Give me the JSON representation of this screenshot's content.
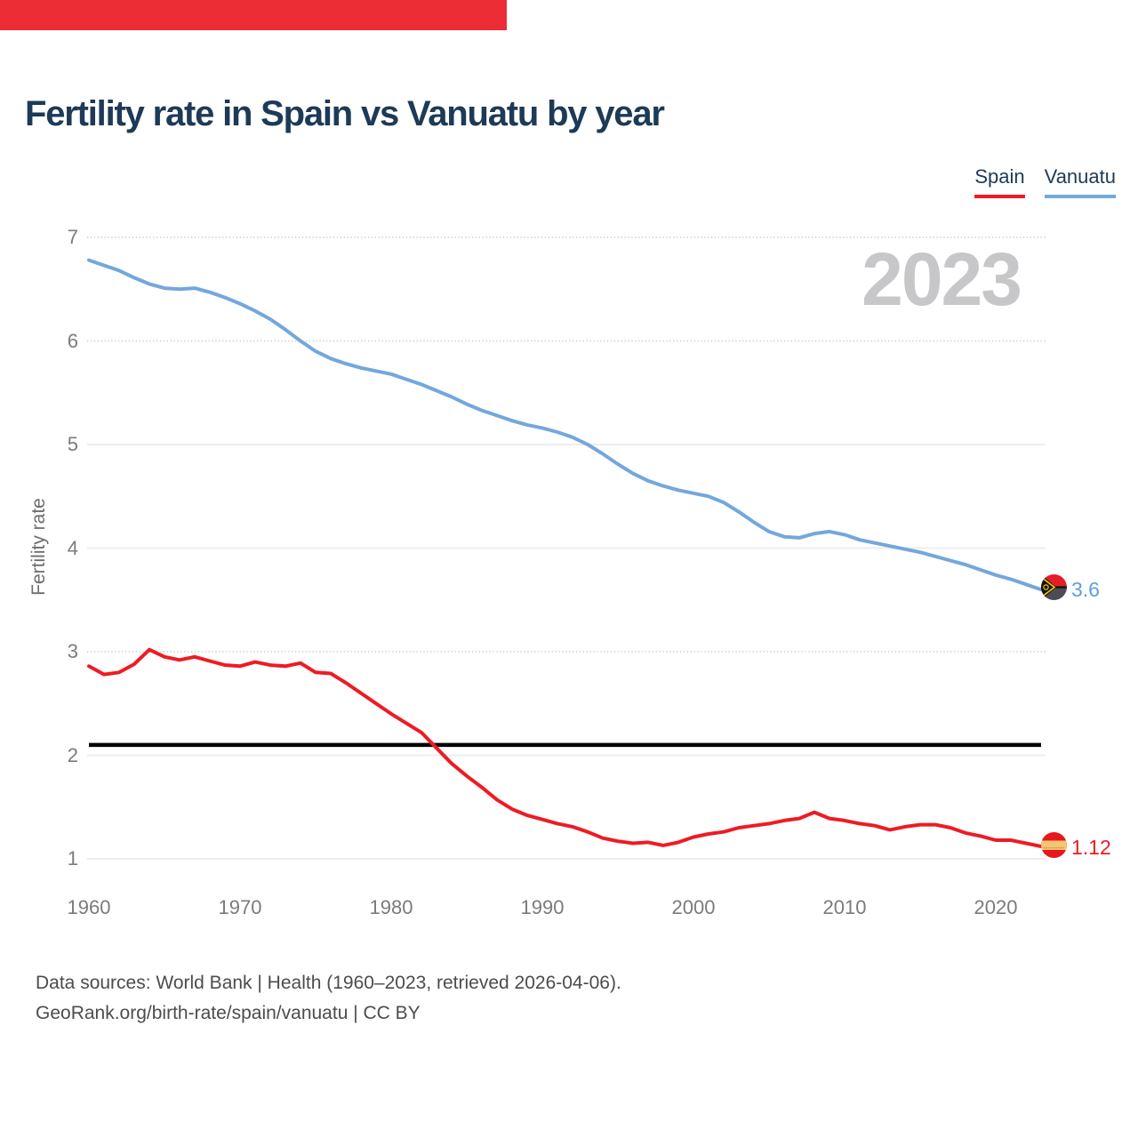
{
  "top_bar": {
    "color": "#ed2d36"
  },
  "header": {
    "title": "Fertility rate in Spain vs Vanuatu by year"
  },
  "legend": {
    "items": [
      {
        "label": "Spain",
        "color": "#ee1b24"
      },
      {
        "label": "Vanuatu",
        "color": "#74a9dd"
      }
    ]
  },
  "watermark": {
    "text": "2023"
  },
  "y_axis": {
    "title": "Fertility rate",
    "ticks": [
      7,
      6,
      5,
      4,
      3,
      2,
      1
    ],
    "dotted_ticks": [
      7,
      6,
      3
    ]
  },
  "x_axis": {
    "ticks": [
      1960,
      1970,
      1980,
      1990,
      2000,
      2010,
      2020
    ]
  },
  "end_labels": {
    "vanuatu": {
      "value": "3.6",
      "color": "#5f9ed8",
      "flag": "vanuatu-flag"
    },
    "spain": {
      "value": "1.12",
      "color": "#ee1b24",
      "flag": "spain-flag"
    }
  },
  "footer": {
    "line1": "Data sources: World Bank | Health (1960–2023, retrieved 2026-04-06).",
    "line2": "GeoRank.org/birth-rate/spain/vanuatu | CC BY"
  },
  "chart_data": {
    "type": "line",
    "title": "Fertility rate in Spain vs Vanuatu by year",
    "ylabel": "Fertility rate",
    "ylim": [
      1,
      7
    ],
    "grid": true,
    "legend_position": "top-right",
    "watermark": "2023",
    "reference_line": {
      "value": 2.1,
      "color": "#000000"
    },
    "yticks": [
      1,
      2,
      3,
      4,
      5,
      6,
      7
    ],
    "xticks": [
      1960,
      1970,
      1980,
      1990,
      2000,
      2010,
      2020
    ],
    "x": [
      1960,
      1961,
      1962,
      1963,
      1964,
      1965,
      1966,
      1967,
      1968,
      1969,
      1970,
      1971,
      1972,
      1973,
      1974,
      1975,
      1976,
      1977,
      1978,
      1979,
      1980,
      1981,
      1982,
      1983,
      1984,
      1985,
      1986,
      1987,
      1988,
      1989,
      1990,
      1991,
      1992,
      1993,
      1994,
      1995,
      1996,
      1997,
      1998,
      1999,
      2000,
      2001,
      2002,
      2003,
      2004,
      2005,
      2006,
      2007,
      2008,
      2009,
      2010,
      2011,
      2012,
      2013,
      2014,
      2015,
      2016,
      2017,
      2018,
      2019,
      2020,
      2021,
      2022,
      2023
    ],
    "series": [
      {
        "name": "Spain",
        "color": "#ee1b24",
        "end_value": "1.12",
        "values": [
          2.86,
          2.78,
          2.8,
          2.88,
          3.02,
          2.95,
          2.92,
          2.95,
          2.91,
          2.87,
          2.86,
          2.9,
          2.87,
          2.86,
          2.89,
          2.8,
          2.79,
          2.7,
          2.6,
          2.5,
          2.4,
          2.31,
          2.22,
          2.07,
          1.92,
          1.8,
          1.69,
          1.57,
          1.48,
          1.42,
          1.38,
          1.34,
          1.31,
          1.26,
          1.2,
          1.17,
          1.15,
          1.16,
          1.13,
          1.16,
          1.21,
          1.24,
          1.26,
          1.3,
          1.32,
          1.34,
          1.37,
          1.39,
          1.45,
          1.39,
          1.37,
          1.34,
          1.32,
          1.28,
          1.31,
          1.33,
          1.33,
          1.3,
          1.25,
          1.22,
          1.18,
          1.18,
          1.15,
          1.12
        ]
      },
      {
        "name": "Vanuatu",
        "color": "#73a7dd",
        "end_value": "3.6",
        "values": [
          6.78,
          6.73,
          6.68,
          6.61,
          6.55,
          6.51,
          6.5,
          6.51,
          6.47,
          6.42,
          6.36,
          6.29,
          6.21,
          6.11,
          6.0,
          5.9,
          5.83,
          5.78,
          5.74,
          5.71,
          5.68,
          5.63,
          5.58,
          5.52,
          5.46,
          5.39,
          5.33,
          5.28,
          5.23,
          5.19,
          5.16,
          5.12,
          5.07,
          5.0,
          4.91,
          4.81,
          4.72,
          4.65,
          4.6,
          4.56,
          4.53,
          4.5,
          4.44,
          4.35,
          4.25,
          4.16,
          4.11,
          4.1,
          4.14,
          4.16,
          4.13,
          4.08,
          4.05,
          4.02,
          3.99,
          3.96,
          3.92,
          3.88,
          3.84,
          3.79,
          3.74,
          3.7,
          3.65,
          3.6
        ]
      }
    ]
  }
}
